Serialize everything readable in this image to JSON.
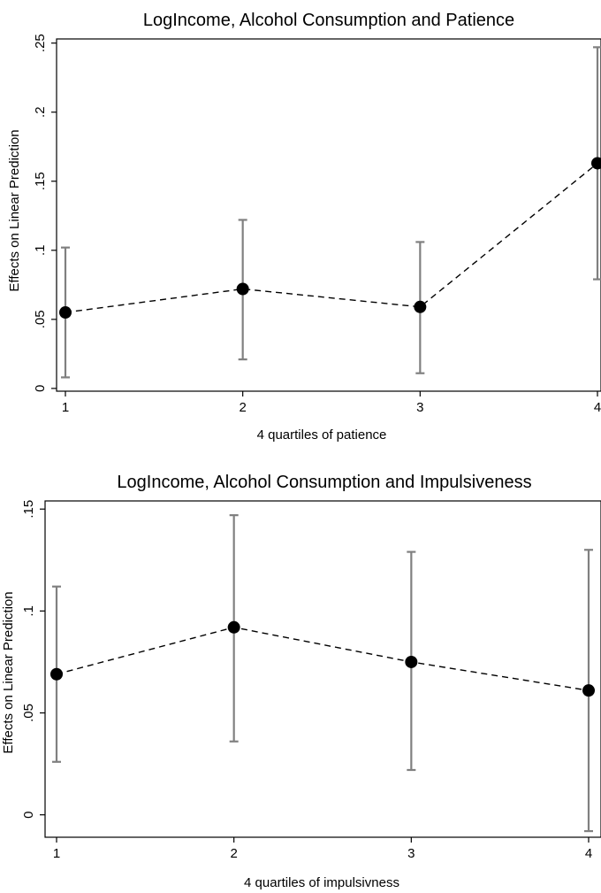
{
  "charts": [
    {
      "title": "LogIncome, Alcohol Consumption and Patience",
      "xlabel": "4 quartiles of patience",
      "ylabel": "Effects on Linear Prediction"
    },
    {
      "title": "LogIncome, Alcohol Consumption and Impulsiveness",
      "xlabel": "4 quartiles of impulsivness",
      "ylabel": "Effects on Linear Prediction"
    }
  ],
  "chart_data": [
    {
      "type": "line",
      "title": "LogIncome, Alcohol Consumption and Patience",
      "xlabel": "4 quartiles of patience",
      "ylabel": "Effects on Linear Prediction",
      "x": [
        1,
        2,
        3,
        4
      ],
      "x_tick_labels": [
        "1",
        "2",
        "3",
        "4"
      ],
      "y": [
        0.055,
        0.072,
        0.059,
        0.163
      ],
      "ci_lower": [
        0.008,
        0.021,
        0.011,
        0.079
      ],
      "ci_upper": [
        0.102,
        0.122,
        0.106,
        0.247
      ],
      "xlim": [
        1,
        4
      ],
      "ylim": [
        -0.002,
        0.253
      ],
      "y_ticks": [
        0,
        0.05,
        0.1,
        0.15,
        0.2,
        0.25
      ],
      "y_tick_labels": [
        "0",
        ".05",
        ".1",
        ".15",
        ".2",
        ".25"
      ],
      "grid": false,
      "marker_color": "#000000",
      "line_color": "#000000",
      "line_style": "dashed",
      "errorbar_color": "#808080"
    },
    {
      "type": "line",
      "title": "LogIncome, Alcohol Consumption and Impulsiveness",
      "xlabel": "4 quartiles of impulsivness",
      "ylabel": "Effects on Linear Prediction",
      "x": [
        1,
        2,
        3,
        4
      ],
      "x_tick_labels": [
        "1",
        "2",
        "3",
        "4"
      ],
      "y": [
        0.069,
        0.092,
        0.075,
        0.061
      ],
      "ci_lower": [
        0.026,
        0.036,
        0.022,
        -0.008
      ],
      "ci_upper": [
        0.112,
        0.147,
        0.129,
        0.13
      ],
      "xlim": [
        1,
        4
      ],
      "ylim": [
        -0.011,
        0.154
      ],
      "y_ticks": [
        0,
        0.05,
        0.1,
        0.15
      ],
      "y_tick_labels": [
        "0",
        ".05",
        ".1",
        ".15"
      ],
      "grid": false,
      "marker_color": "#000000",
      "line_color": "#000000",
      "line_style": "dashed",
      "errorbar_color": "#808080"
    }
  ]
}
